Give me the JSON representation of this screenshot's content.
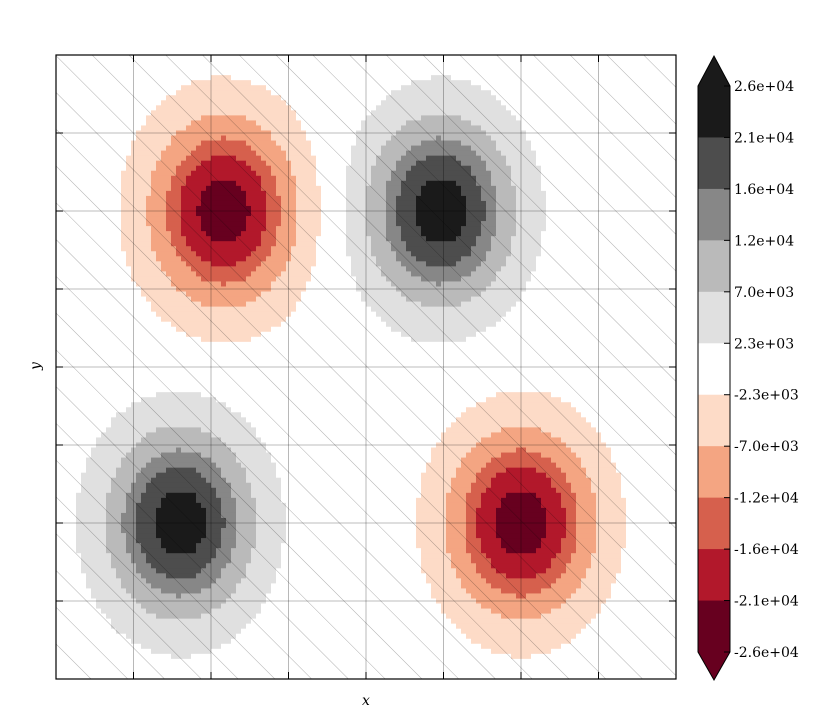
{
  "chart_data": {
    "type": "heatmap",
    "subtype": "filled-contour",
    "title": "",
    "xlabel": "x",
    "ylabel": "y",
    "grid": true,
    "hatch": "diagonal (/) over whole field",
    "colormap": "RdGy (red = negative, black = positive)",
    "colorbar": {
      "placement": "right",
      "extend": "both",
      "tick_labels": [
        "2.6e+04",
        "2.1e+04",
        "1.6e+04",
        "1.2e+04",
        "7.0e+03",
        "2.3e+03",
        "-2.3e+03",
        "-7.0e+03",
        "-1.2e+04",
        "-1.6e+04",
        "-2.1e+04",
        "-2.6e+04"
      ],
      "levels": [
        26000,
        21000,
        16000,
        12000,
        7000,
        2300,
        -2300,
        -7000,
        -12000,
        -16000,
        -21000,
        -26000
      ],
      "band_colors": [
        "#1a1a1a",
        "#4d4d4d",
        "#878787",
        "#bababa",
        "#e0e0e0",
        "#ffffff",
        "#fddbc7",
        "#f4a582",
        "#d6604d",
        "#b2182b",
        "#67001f"
      ],
      "over_color": "#1a1a1a",
      "under_color": "#67001f"
    },
    "features": [
      {
        "kind": "minimum",
        "peak": -21000,
        "approx_x": 0.27,
        "approx_y": 0.75,
        "note": "red cell, upper left"
      },
      {
        "kind": "maximum",
        "peak": 21000,
        "approx_x": 0.62,
        "approx_y": 0.75,
        "note": "dark cell, upper right"
      },
      {
        "kind": "maximum",
        "peak": 21000,
        "approx_x": 0.2,
        "approx_y": 0.25,
        "note": "dark cell, lower left"
      },
      {
        "kind": "minimum",
        "peak": -21000,
        "approx_x": 0.75,
        "approx_y": 0.25,
        "note": "red cell, lower right"
      }
    ]
  }
}
